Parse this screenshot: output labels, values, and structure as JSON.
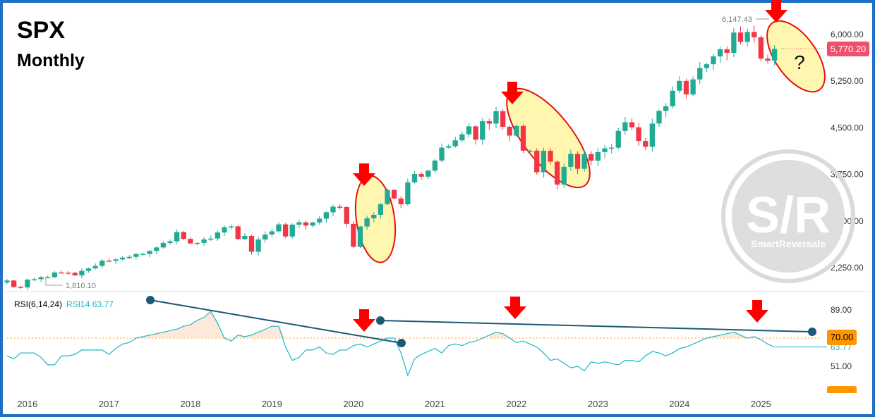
{
  "header": {
    "title": "SPX",
    "subtitle": "Monthly"
  },
  "price_badge": "5,770.20",
  "rsi": {
    "label": "RSI(6,14,24)",
    "value_label": "RSI14 63.77",
    "badge_70": "70.00",
    "hidden_value": "63.77"
  },
  "annotations": {
    "high_label": "6,147.43",
    "low_label": "1,810.10",
    "question": "?"
  },
  "watermark": {
    "main": "S/R",
    "sub": "SmartReversals"
  },
  "colors": {
    "up": "#22ab94",
    "down": "#f23645",
    "rsi_line": "#1ab8c9",
    "trendline": "#1c5878",
    "arrow": "#ff0000",
    "ellipse_fill": "#fff7b0",
    "ellipse_stroke": "#e8100e"
  },
  "chart_data": [
    {
      "type": "candlestick",
      "title": "SPX",
      "subtitle": "Monthly",
      "x_ticks": [
        "2016",
        "2017",
        "2018",
        "2019",
        "2020",
        "2021",
        "2022",
        "2023",
        "2024",
        "2025"
      ],
      "y_ticks": [
        "2,250.00",
        "3,000.00",
        "3,750.00",
        "4,500.00",
        "5,250.00",
        "6,000.00"
      ],
      "y_tick_values": [
        2250,
        3000,
        3750,
        4500,
        5250,
        6000
      ],
      "ylim": [
        1650,
        6500
      ],
      "x_start": 2015.75,
      "x_end": 2025.75,
      "series": [
        {
          "name": "SPX"
        }
      ],
      "monthly_close": [
        2043,
        1940,
        1932,
        2059,
        2065,
        2096,
        2098,
        2173,
        2170,
        2168,
        2126,
        2198,
        2238,
        2278,
        2363,
        2362,
        2384,
        2411,
        2423,
        2470,
        2471,
        2519,
        2575,
        2647,
        2673,
        2823,
        2713,
        2640,
        2648,
        2705,
        2718,
        2816,
        2901,
        2914,
        2711,
        2760,
        2506,
        2704,
        2784,
        2834,
        2946,
        2752,
        2942,
        2980,
        2926,
        2977,
        3038,
        3141,
        3231,
        3225,
        2954,
        2585,
        2912,
        3044,
        3100,
        3271,
        3500,
        3363,
        3270,
        3622,
        3756,
        3714,
        3811,
        3973,
        4181,
        4204,
        4298,
        4395,
        4523,
        4308,
        4605,
        4567,
        4766,
        4516,
        4374,
        4530,
        4132,
        4132,
        3785,
        4130,
        3955,
        3586,
        3872,
        4080,
        3840,
        4077,
        3970,
        4109,
        4169,
        4180,
        4450,
        4589,
        4508,
        4288,
        4194,
        4568,
        4770,
        4846,
        5096,
        5254,
        5036,
        5278,
        5460,
        5522,
        5648,
        5762,
        5705,
        6032,
        5882,
        6041,
        5955,
        5612,
        5580,
        5770
      ],
      "annotated_high": 6147.43,
      "annotated_low": 1810.1,
      "last_price": 5770.2
    },
    {
      "type": "line",
      "title": "RSI(6,14,24)",
      "y_ticks": [
        "51.00",
        "89.00"
      ],
      "y_tick_values": [
        51,
        89
      ],
      "ylim": [
        40,
        100
      ],
      "overbought": 70,
      "series": [
        {
          "name": "RSI14",
          "last": 63.77
        }
      ],
      "rsi_values": [
        58,
        56,
        60,
        60,
        60,
        57,
        52,
        52,
        58,
        58,
        59,
        62,
        62,
        62,
        62,
        59,
        63,
        66,
        67,
        70,
        71,
        72,
        73,
        74,
        75,
        76,
        78,
        79,
        82,
        84,
        88,
        80,
        70,
        68,
        72,
        71,
        72,
        74,
        76,
        78,
        78,
        64,
        55,
        57,
        62,
        62,
        64,
        60,
        59,
        62,
        62,
        65,
        66,
        64,
        66,
        68,
        70,
        70,
        60,
        45,
        56,
        59,
        61,
        63,
        60,
        65,
        66,
        65,
        67,
        68,
        70,
        72,
        74,
        73,
        70,
        67,
        68,
        66,
        64,
        60,
        55,
        56,
        53,
        50,
        51,
        48,
        54,
        53,
        54,
        53,
        52,
        55,
        55,
        54,
        58,
        61,
        60,
        58,
        60,
        63,
        64,
        66,
        68,
        70,
        71,
        72,
        73,
        74,
        72,
        70,
        71,
        69,
        66,
        64
      ]
    }
  ]
}
